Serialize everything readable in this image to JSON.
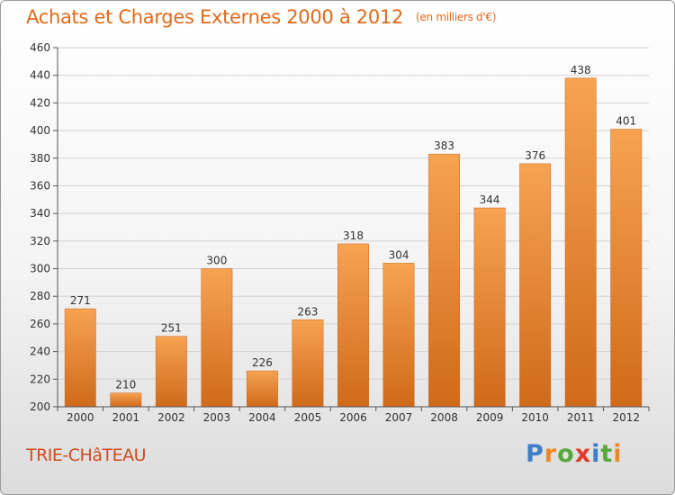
{
  "header": {
    "title": "Achats et Charges Externes 2000 à 2012",
    "unit": "(en milliers d'€)"
  },
  "footer": {
    "city": "TRIE-CHâTEAU",
    "logo": {
      "letters": [
        "P",
        "r",
        "o",
        "x",
        "i",
        "t",
        "i"
      ],
      "colors": [
        "#3f7fc8",
        "#e9892a",
        "#58a83a",
        "#e03a2a",
        "#3f7fc8",
        "#58a83a",
        "#e9892a"
      ]
    }
  },
  "chart_data": {
    "type": "bar",
    "categories": [
      "2000",
      "2001",
      "2002",
      "2003",
      "2004",
      "2005",
      "2006",
      "2007",
      "2008",
      "2009",
      "2010",
      "2011",
      "2012"
    ],
    "values": [
      271,
      210,
      251,
      300,
      226,
      263,
      318,
      304,
      383,
      344,
      376,
      438,
      401
    ],
    "yticks": [
      200,
      220,
      240,
      260,
      280,
      300,
      320,
      340,
      360,
      380,
      400,
      420,
      440,
      460
    ],
    "ylim": [
      200,
      460
    ],
    "grid": true,
    "data_labels": true,
    "colors": {
      "bar_top": "#f7a352",
      "bar_bottom": "#cf6a1a",
      "grid": "#d2d2d2",
      "axis": "#555555"
    }
  }
}
